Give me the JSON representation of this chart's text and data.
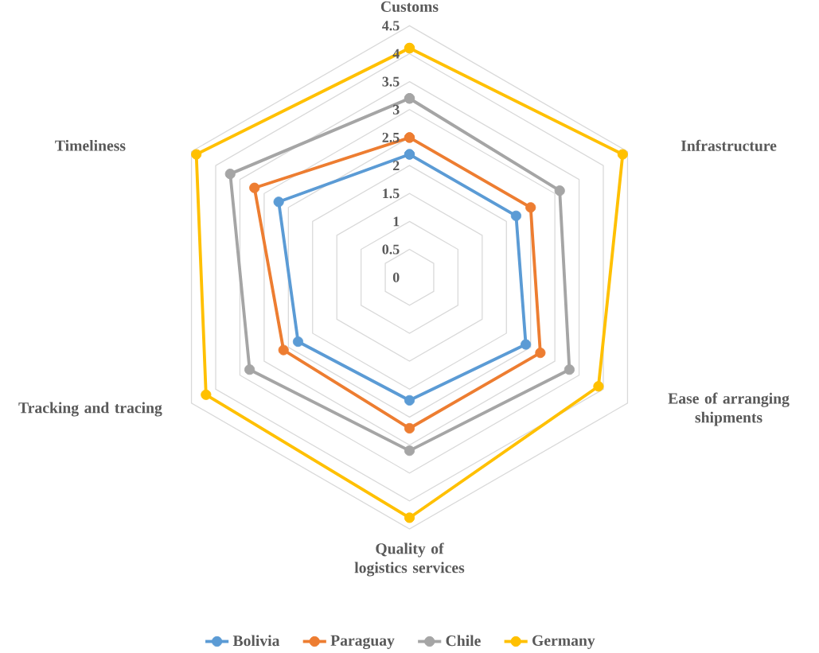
{
  "chart_data": {
    "type": "radar",
    "categories": [
      "Customs",
      "Infrastructure",
      "Ease of arranging shipments",
      "Quality of logistics services",
      "Tracking and tracing",
      "Timeliness"
    ],
    "ylim": [
      0,
      4.5
    ],
    "yticks": [
      0,
      0.5,
      1,
      1.5,
      2,
      2.5,
      3,
      3.5,
      4,
      4.5
    ],
    "grid": true,
    "legend": "bottom",
    "marker": "circle",
    "series": [
      {
        "name": "Bolivia",
        "color": "#5b9bd5",
        "values": [
          2.2,
          2.2,
          2.4,
          2.2,
          2.3,
          2.7
        ]
      },
      {
        "name": "Paraguay",
        "color": "#ed7d31",
        "values": [
          2.5,
          2.5,
          2.7,
          2.7,
          2.6,
          3.2
        ]
      },
      {
        "name": "Chile",
        "color": "#a5a5a5",
        "values": [
          3.2,
          3.1,
          3.3,
          3.1,
          3.3,
          3.7
        ]
      },
      {
        "name": "Germany",
        "color": "#ffc000",
        "values": [
          4.1,
          4.4,
          3.9,
          4.3,
          4.2,
          4.4
        ]
      }
    ]
  }
}
